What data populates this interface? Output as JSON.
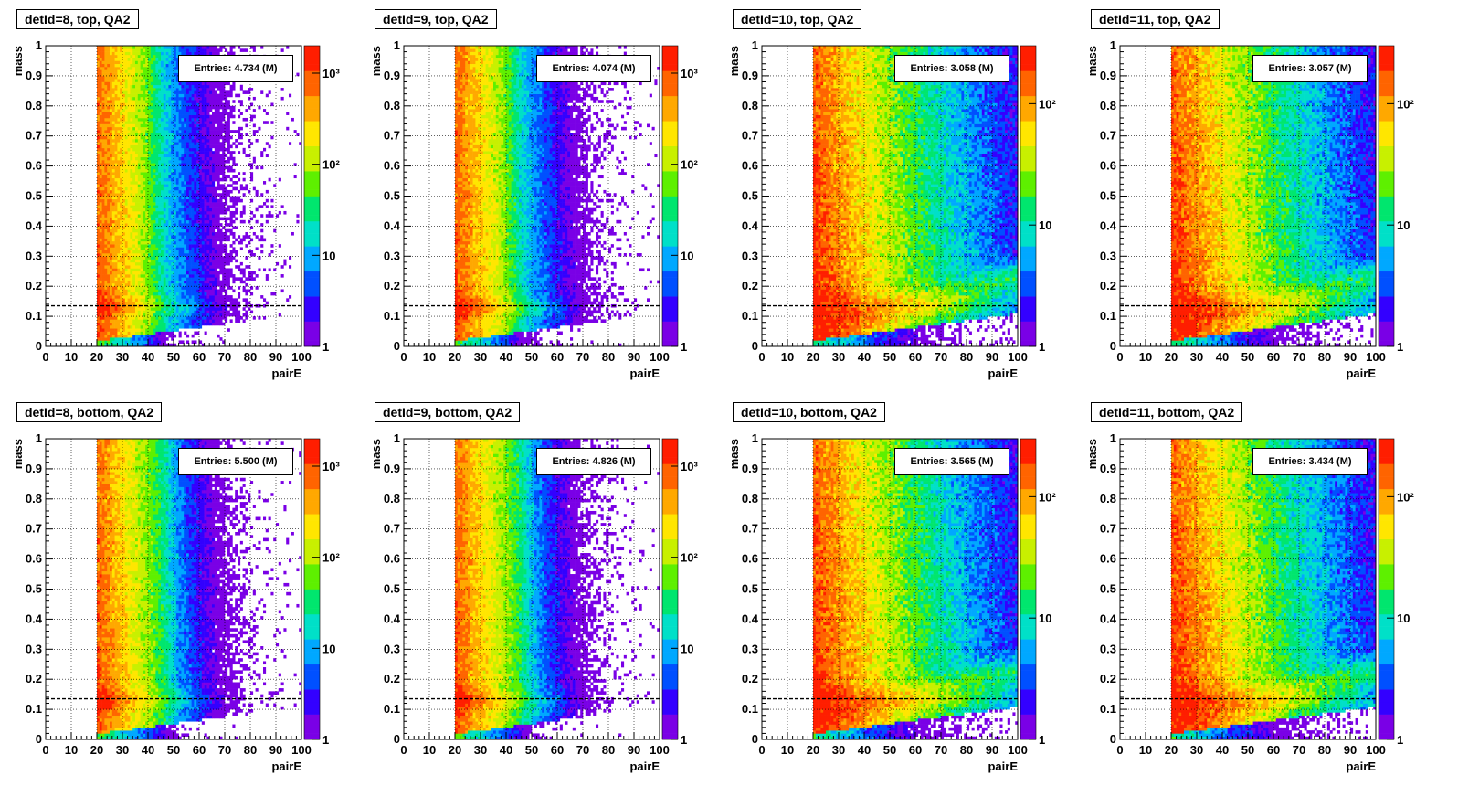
{
  "chart_data": [
    {
      "type": "heatmap",
      "title": "detId=8, top, QA2",
      "xlabel": "pairE",
      "ylabel": "mass",
      "xlim": [
        0,
        100
      ],
      "ylim": [
        0,
        1
      ],
      "xticks": [
        "0",
        "10",
        "20",
        "30",
        "40",
        "50",
        "60",
        "70",
        "80",
        "90",
        "100"
      ],
      "yticks": [
        "0",
        "0.1",
        "0.2",
        "0.3",
        "0.4",
        "0.5",
        "0.6",
        "0.7",
        "0.8",
        "0.9",
        "1"
      ],
      "stats_label": "Entries:",
      "stats_value": "4.734 (M)",
      "zscale": "log",
      "zmax": 2000,
      "zticks": [
        {
          "v": 1,
          "label": "1"
        },
        {
          "v": 10,
          "label": "10"
        },
        {
          "v": 100,
          "label": "10²"
        },
        {
          "v": 1000,
          "label": "10³"
        }
      ],
      "reference_line_y": 0.135,
      "threshold_x": 20,
      "energy_edge": 50,
      "peak_mass": 0.13
    },
    {
      "type": "heatmap",
      "title": "detId=9, top, QA2",
      "xlabel": "pairE",
      "ylabel": "mass",
      "xlim": [
        0,
        100
      ],
      "ylim": [
        0,
        1
      ],
      "xticks": [
        "0",
        "10",
        "20",
        "30",
        "40",
        "50",
        "60",
        "70",
        "80",
        "90",
        "100"
      ],
      "yticks": [
        "0",
        "0.1",
        "0.2",
        "0.3",
        "0.4",
        "0.5",
        "0.6",
        "0.7",
        "0.8",
        "0.9",
        "1"
      ],
      "stats_label": "Entries:",
      "stats_value": "4.074 (M)",
      "zscale": "log",
      "zmax": 2000,
      "zticks": [
        {
          "v": 1,
          "label": "1"
        },
        {
          "v": 10,
          "label": "10"
        },
        {
          "v": 100,
          "label": "10²"
        },
        {
          "v": 1000,
          "label": "10³"
        }
      ],
      "reference_line_y": 0.135,
      "threshold_x": 20,
      "energy_edge": 50,
      "peak_mass": 0.13
    },
    {
      "type": "heatmap",
      "title": "detId=10, top, QA2",
      "xlabel": "pairE",
      "ylabel": "mass",
      "xlim": [
        0,
        100
      ],
      "ylim": [
        0,
        1
      ],
      "xticks": [
        "0",
        "10",
        "20",
        "30",
        "40",
        "50",
        "60",
        "70",
        "80",
        "90",
        "100"
      ],
      "yticks": [
        "0",
        "0.1",
        "0.2",
        "0.3",
        "0.4",
        "0.5",
        "0.6",
        "0.7",
        "0.8",
        "0.9",
        "1"
      ],
      "stats_label": "Entries:",
      "stats_value": "3.058 (M)",
      "zscale": "log",
      "zmax": 300,
      "zticks": [
        {
          "v": 1,
          "label": "1"
        },
        {
          "v": 10,
          "label": "10"
        },
        {
          "v": 100,
          "label": "10²"
        }
      ],
      "reference_line_y": 0.135,
      "threshold_x": 20,
      "energy_edge": 100,
      "peak_mass": 0.13
    },
    {
      "type": "heatmap",
      "title": "detId=11, top, QA2",
      "xlabel": "pairE",
      "ylabel": "mass",
      "xlim": [
        0,
        100
      ],
      "ylim": [
        0,
        1
      ],
      "xticks": [
        "0",
        "10",
        "20",
        "30",
        "40",
        "50",
        "60",
        "70",
        "80",
        "90",
        "100"
      ],
      "yticks": [
        "0",
        "0.1",
        "0.2",
        "0.3",
        "0.4",
        "0.5",
        "0.6",
        "0.7",
        "0.8",
        "0.9",
        "1"
      ],
      "stats_label": "Entries:",
      "stats_value": "3.057 (M)",
      "zscale": "log",
      "zmax": 300,
      "zticks": [
        {
          "v": 1,
          "label": "1"
        },
        {
          "v": 10,
          "label": "10"
        },
        {
          "v": 100,
          "label": "10²"
        }
      ],
      "reference_line_y": 0.135,
      "threshold_x": 20,
      "energy_edge": 100,
      "peak_mass": 0.13
    },
    {
      "type": "heatmap",
      "title": "detId=8, bottom, QA2",
      "xlabel": "pairE",
      "ylabel": "mass",
      "xlim": [
        0,
        100
      ],
      "ylim": [
        0,
        1
      ],
      "xticks": [
        "0",
        "10",
        "20",
        "30",
        "40",
        "50",
        "60",
        "70",
        "80",
        "90",
        "100"
      ],
      "yticks": [
        "0",
        "0.1",
        "0.2",
        "0.3",
        "0.4",
        "0.5",
        "0.6",
        "0.7",
        "0.8",
        "0.9",
        "1"
      ],
      "stats_label": "Entries:",
      "stats_value": "5.500 (M)",
      "zscale": "log",
      "zmax": 2000,
      "zticks": [
        {
          "v": 1,
          "label": "1"
        },
        {
          "v": 10,
          "label": "10"
        },
        {
          "v": 100,
          "label": "10²"
        },
        {
          "v": 1000,
          "label": "10³"
        }
      ],
      "reference_line_y": 0.135,
      "threshold_x": 20,
      "energy_edge": 55,
      "peak_mass": 0.13
    },
    {
      "type": "heatmap",
      "title": "detId=9, bottom, QA2",
      "xlabel": "pairE",
      "ylabel": "mass",
      "xlim": [
        0,
        100
      ],
      "ylim": [
        0,
        1
      ],
      "xticks": [
        "0",
        "10",
        "20",
        "30",
        "40",
        "50",
        "60",
        "70",
        "80",
        "90",
        "100"
      ],
      "yticks": [
        "0",
        "0.1",
        "0.2",
        "0.3",
        "0.4",
        "0.5",
        "0.6",
        "0.7",
        "0.8",
        "0.9",
        "1"
      ],
      "stats_label": "Entries:",
      "stats_value": "4.826 (M)",
      "zscale": "log",
      "zmax": 2000,
      "zticks": [
        {
          "v": 1,
          "label": "1"
        },
        {
          "v": 10,
          "label": "10"
        },
        {
          "v": 100,
          "label": "10²"
        },
        {
          "v": 1000,
          "label": "10³"
        }
      ],
      "reference_line_y": 0.135,
      "threshold_x": 20,
      "energy_edge": 55,
      "peak_mass": 0.13
    },
    {
      "type": "heatmap",
      "title": "detId=10, bottom, QA2",
      "xlabel": "pairE",
      "ylabel": "mass",
      "xlim": [
        0,
        100
      ],
      "ylim": [
        0,
        1
      ],
      "xticks": [
        "0",
        "10",
        "20",
        "30",
        "40",
        "50",
        "60",
        "70",
        "80",
        "90",
        "100"
      ],
      "yticks": [
        "0",
        "0.1",
        "0.2",
        "0.3",
        "0.4",
        "0.5",
        "0.6",
        "0.7",
        "0.8",
        "0.9",
        "1"
      ],
      "stats_label": "Entries:",
      "stats_value": "3.565 (M)",
      "zscale": "log",
      "zmax": 300,
      "zticks": [
        {
          "v": 1,
          "label": "1"
        },
        {
          "v": 10,
          "label": "10"
        },
        {
          "v": 100,
          "label": "10²"
        }
      ],
      "reference_line_y": 0.135,
      "threshold_x": 20,
      "energy_edge": 100,
      "peak_mass": 0.13
    },
    {
      "type": "heatmap",
      "title": "detId=11, bottom, QA2",
      "xlabel": "pairE",
      "ylabel": "mass",
      "xlim": [
        0,
        100
      ],
      "ylim": [
        0,
        1
      ],
      "xticks": [
        "0",
        "10",
        "20",
        "30",
        "40",
        "50",
        "60",
        "70",
        "80",
        "90",
        "100"
      ],
      "yticks": [
        "0",
        "0.1",
        "0.2",
        "0.3",
        "0.4",
        "0.5",
        "0.6",
        "0.7",
        "0.8",
        "0.9",
        "1"
      ],
      "stats_label": "Entries:",
      "stats_value": "3.434 (M)",
      "zscale": "log",
      "zmax": 300,
      "zticks": [
        {
          "v": 1,
          "label": "1"
        },
        {
          "v": 10,
          "label": "10"
        },
        {
          "v": 100,
          "label": "10²"
        }
      ],
      "reference_line_y": 0.135,
      "threshold_x": 20,
      "energy_edge": 100,
      "peak_mass": 0.13
    }
  ],
  "style": {
    "palette": [
      "#7a00e6",
      "#3300ff",
      "#0050ff",
      "#00a8ff",
      "#00e0c8",
      "#00e66e",
      "#5ef000",
      "#c8f000",
      "#ffe600",
      "#ffa800",
      "#ff6400",
      "#ff1e00"
    ],
    "axis_color": "#000000",
    "reference_line_color": "#000000"
  }
}
